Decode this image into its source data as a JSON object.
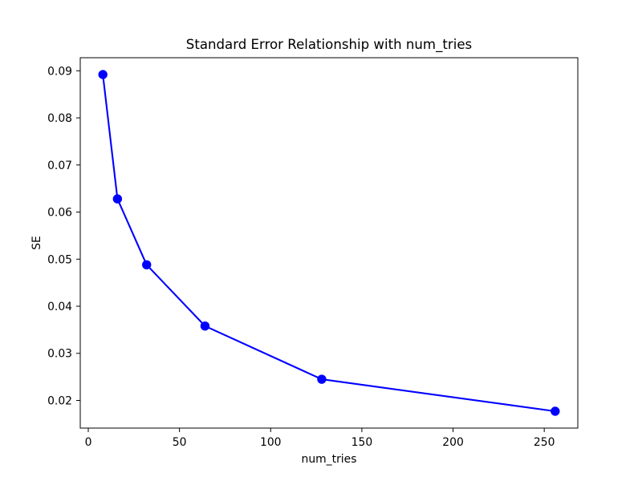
{
  "chart_data": {
    "type": "line",
    "title": "Standard Error Relationship with num_tries",
    "xlabel": "num_tries",
    "ylabel": "SE",
    "x": [
      8,
      16,
      32,
      64,
      128,
      256
    ],
    "series": [
      {
        "name": "SE",
        "values": [
          0.0892,
          0.0628,
          0.0488,
          0.0358,
          0.0245,
          0.0177
        ]
      }
    ],
    "xlim": [
      -4.4,
      268.4
    ],
    "ylim": [
      0.014125,
      0.092775
    ],
    "xticks": [
      0,
      50,
      100,
      150,
      200,
      250
    ],
    "yticks": [
      0.02,
      0.03,
      0.04,
      0.05,
      0.06,
      0.07,
      0.08,
      0.09
    ],
    "xticklabels": [
      "0",
      "50",
      "100",
      "150",
      "200",
      "250"
    ],
    "yticklabels": [
      "0.02",
      "0.03",
      "0.04",
      "0.05",
      "0.06",
      "0.07",
      "0.08",
      "0.09"
    ],
    "line_color": "#0000ff",
    "marker": "circle",
    "grid": false,
    "legend": null,
    "background_color": "#ffffff"
  }
}
